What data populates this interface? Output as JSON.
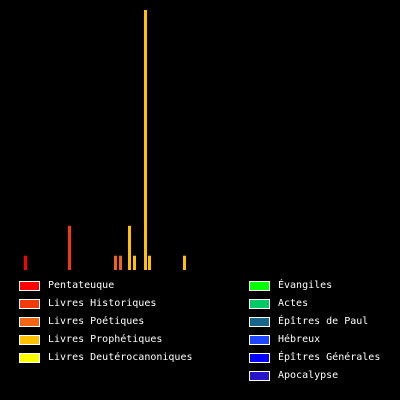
{
  "chart_data": {
    "type": "bar",
    "background": "#000000",
    "grid": false,
    "legend_position": "bottom",
    "title": "",
    "xlabel": "",
    "ylabel": "",
    "ylim": [
      0,
      100
    ],
    "bars": [
      {
        "group": "Pentateuque",
        "value": 5.5,
        "color": "#ff0000"
      },
      {
        "group": "Livres Historiques",
        "value": 17,
        "color": "#f03a0a"
      },
      {
        "group": "Livres Poétiques",
        "value": 5.5,
        "color": "#f06414"
      },
      {
        "group": "Livres Poétiques",
        "value": 5.5,
        "color": "#f06414"
      },
      {
        "group": "Livres Prophétiques",
        "value": 17,
        "color": "#ffc000"
      },
      {
        "group": "Livres Prophétiques",
        "value": 5.5,
        "color": "#ffc000"
      },
      {
        "group": "Livres Prophétiques",
        "value": 100,
        "color": "#ffc000"
      },
      {
        "group": "Livres Prophétiques",
        "value": 5.5,
        "color": "#ffc000"
      },
      {
        "group": "Livres Prophétiques",
        "value": 5.5,
        "color": "#ffc000"
      }
    ]
  },
  "legend": {
    "left": [
      {
        "label": "Pentateuque",
        "color": "#ff0000"
      },
      {
        "label": "Livres Historiques",
        "color": "#f03a0a"
      },
      {
        "label": "Livres Poétiques",
        "color": "#f06414"
      },
      {
        "label": "Livres Prophétiques",
        "color": "#ffc000"
      },
      {
        "label": "Livres Deutérocanoniques",
        "color": "#ffff00"
      }
    ],
    "right": [
      {
        "label": "Évangiles",
        "color": "#00ff00"
      },
      {
        "label": "Actes",
        "color": "#00c864"
      },
      {
        "label": "Épîtres de Paul",
        "color": "#14648c"
      },
      {
        "label": "Hébreux",
        "color": "#1e46ff"
      },
      {
        "label": "Épîtres Générales",
        "color": "#0000ff"
      },
      {
        "label": "Apocalypse",
        "color": "#2814c8"
      }
    ]
  }
}
